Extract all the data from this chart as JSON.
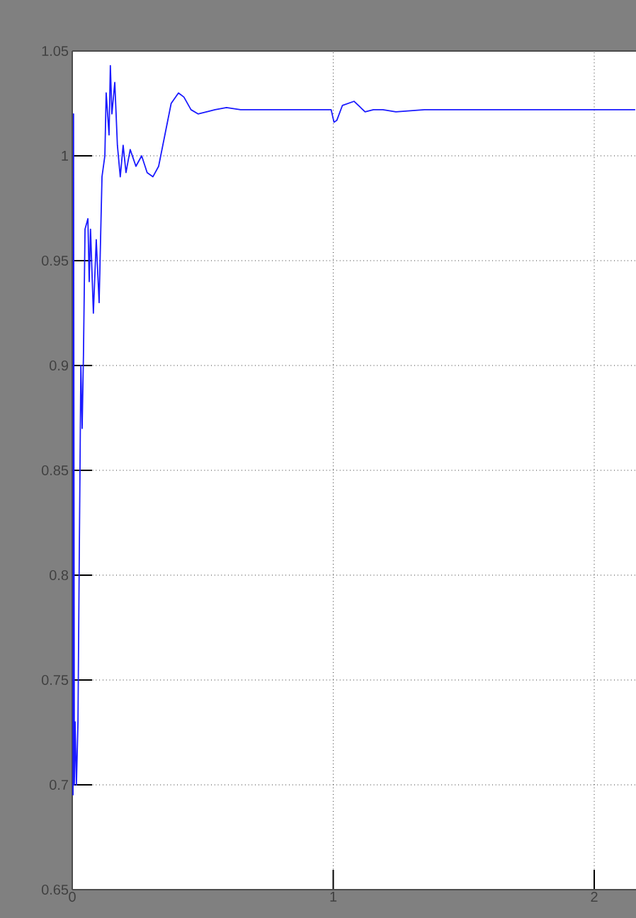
{
  "chart_data": {
    "type": "line",
    "x": [
      0.003,
      0.005,
      0.008,
      0.011,
      0.016,
      0.022,
      0.027,
      0.033,
      0.038,
      0.043,
      0.049,
      0.06,
      0.065,
      0.07,
      0.081,
      0.092,
      0.103,
      0.114,
      0.125,
      0.13,
      0.141,
      0.146,
      0.152,
      0.163,
      0.173,
      0.184,
      0.195,
      0.206,
      0.222,
      0.244,
      0.266,
      0.287,
      0.309,
      0.331,
      0.347,
      0.363,
      0.379,
      0.407,
      0.428,
      0.455,
      0.482,
      0.515,
      0.547,
      0.591,
      0.645,
      0.808,
      0.992,
      1.003,
      1.014,
      1.035,
      1.08,
      1.122,
      1.154,
      1.19,
      1.24,
      1.35,
      2.157
    ],
    "series": [
      {
        "color": "#1a1aff",
        "values": [
          0.695,
          1.02,
          0.7,
          0.73,
          0.7,
          0.73,
          0.81,
          0.9,
          0.87,
          0.905,
          0.965,
          0.97,
          0.94,
          0.965,
          0.925,
          0.96,
          0.93,
          0.99,
          1.0,
          1.03,
          1.01,
          1.043,
          1.02,
          1.035,
          1.005,
          0.99,
          1.005,
          0.992,
          1.003,
          0.995,
          1.0,
          0.992,
          0.99,
          0.995,
          1.005,
          1.015,
          1.025,
          1.03,
          1.028,
          1.022,
          1.02,
          1.021,
          1.022,
          1.023,
          1.022,
          1.022,
          1.022,
          1.016,
          1.017,
          1.024,
          1.026,
          1.021,
          1.022,
          1.022,
          1.021,
          1.022,
          1.022
        ]
      }
    ],
    "xlim": [
      0,
      2.16
    ],
    "ylim": [
      0.65,
      1.05
    ],
    "xticks": [
      0,
      1,
      2
    ],
    "yticks": [
      0.65,
      0.7,
      0.75,
      0.8,
      0.85,
      0.9,
      0.95,
      1,
      1.05
    ],
    "grid": true,
    "line_style": "solid",
    "marker": "none"
  }
}
